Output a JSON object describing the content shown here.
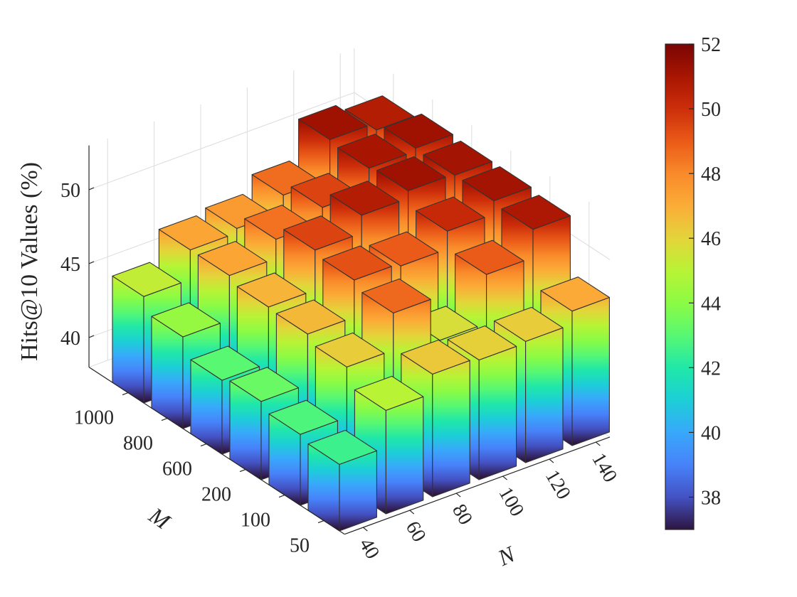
{
  "chart_data": {
    "type": "bar3d",
    "title": "",
    "xlabel": "N",
    "ylabel": "M",
    "zlabel": "Hits@10 Values (%)",
    "x_categories": [
      "40",
      "60",
      "80",
      "100",
      "120",
      "140"
    ],
    "y_categories": [
      "50",
      "100",
      "200",
      "600",
      "800",
      "1000"
    ],
    "zlim": [
      38,
      53
    ],
    "z_ticks": [
      "40",
      "45",
      "50"
    ],
    "z_tick_values": [
      40,
      45,
      50
    ],
    "values": [
      [
        42.5,
        45.0,
        46.3,
        46.1,
        46.2,
        47.1
      ],
      [
        42.8,
        46.2,
        48.7,
        45.7,
        49.0,
        50.9
      ],
      [
        43.3,
        46.7,
        49.2,
        49.0,
        50.2,
        51.1
      ],
      [
        43.0,
        46.8,
        49.5,
        50.7,
        51.2,
        51.1
      ],
      [
        44.2,
        47.2,
        48.5,
        49.5,
        51.0,
        51.2
      ],
      [
        45.2,
        47.2,
        47.5,
        48.6,
        51.2,
        50.7
      ]
    ],
    "colorbar": {
      "range": [
        37,
        52
      ],
      "ticks": [
        "38",
        "40",
        "42",
        "44",
        "46",
        "48",
        "50",
        "52"
      ],
      "tick_values": [
        38,
        40,
        42,
        44,
        46,
        48,
        50,
        52
      ]
    },
    "colormap": [
      "#2e1540",
      "#4452c4",
      "#4782fa",
      "#38a8fb",
      "#1ccfd6",
      "#20e8a8",
      "#58f872",
      "#8cfb44",
      "#b8f335",
      "#e4d43a",
      "#fbac38",
      "#f98a2a",
      "#ea5a18",
      "#cc2e0a",
      "#a81602",
      "#7a0403"
    ],
    "grid": true
  }
}
